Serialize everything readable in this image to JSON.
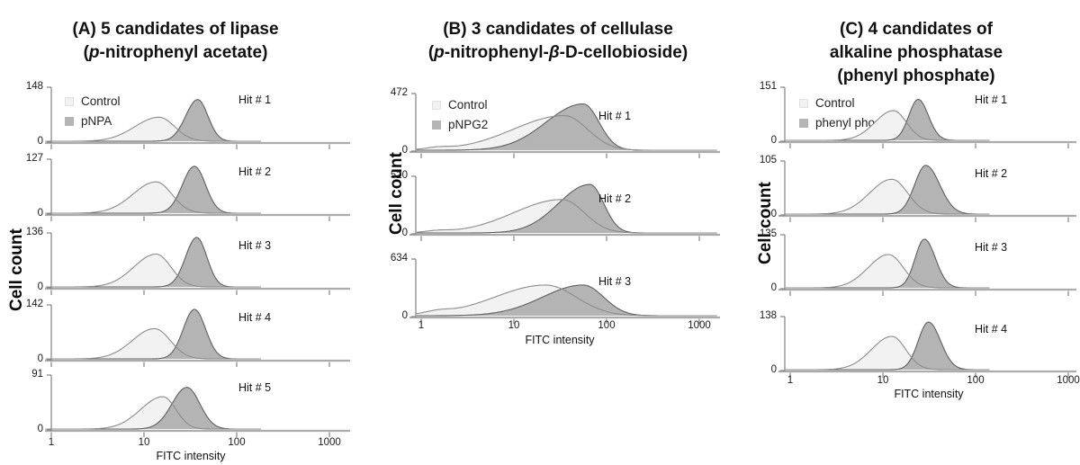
{
  "figure": {
    "ylabel": "Cell count",
    "xlabel": "FITC intensity"
  },
  "colors": {
    "background": "#ffffff",
    "control_fill": "#f2f2f2",
    "control_stroke": "#8c8c8c",
    "substrate_fill": "#b4b4b4",
    "substrate_stroke": "#5f5f5f",
    "axis_line": "#ababab",
    "axis_tick": "#828282",
    "text": "#1a1a1a"
  },
  "chart_data": [
    {
      "panel": "A",
      "type": "area",
      "x_scale": "log",
      "x_range": [
        1,
        1000
      ],
      "title_lines": [
        [
          {
            "t": "(A) 5 candidates of lipase"
          }
        ],
        [
          {
            "t": "("
          },
          {
            "t": "p",
            "italic": true
          },
          {
            "t": "-nitrophenyl acetate)"
          }
        ]
      ],
      "ylabel": "Cell count",
      "xlabel": "FITC intensity",
      "x_ticks": [
        "1",
        "10",
        "100",
        "1000"
      ],
      "legend": [
        {
          "label": "Control",
          "series": "control"
        },
        {
          "label": "pNPA",
          "series": "substrate"
        }
      ],
      "rows": [
        {
          "hit": "Hit # 1",
          "ymax": "148",
          "ymin": "0",
          "control": [
            {
              "peak": 14.5,
              "sl": 0.26,
              "sr": 0.17,
              "h": 0.46
            }
          ],
          "substrate": [
            {
              "peak": 38,
              "sl": 0.13,
              "sr": 0.11,
              "h": 0.8
            }
          ]
        },
        {
          "hit": "Hit # 2",
          "ymax": "127",
          "ymin": "0",
          "control": [
            {
              "peak": 13.5,
              "sl": 0.25,
              "sr": 0.17,
              "h": 0.6
            }
          ],
          "substrate": [
            {
              "peak": 35,
              "sl": 0.13,
              "sr": 0.12,
              "h": 0.9
            }
          ]
        },
        {
          "hit": "Hit # 3",
          "ymax": "136",
          "ymin": "0",
          "control": [
            {
              "peak": 13.5,
              "sl": 0.24,
              "sr": 0.16,
              "h": 0.63
            }
          ],
          "substrate": [
            {
              "peak": 37,
              "sl": 0.12,
              "sr": 0.11,
              "h": 0.95
            }
          ]
        },
        {
          "hit": "Hit # 4",
          "ymax": "142",
          "ymin": "0",
          "control": [
            {
              "peak": 13,
              "sl": 0.24,
              "sr": 0.17,
              "h": 0.58
            }
          ],
          "substrate": [
            {
              "peak": 35,
              "sl": 0.12,
              "sr": 0.12,
              "h": 0.95
            }
          ]
        },
        {
          "hit": "Hit # 5",
          "ymax": "91",
          "ymin": "0",
          "control": [
            {
              "peak": 16,
              "sl": 0.24,
              "sr": 0.14,
              "h": 0.62
            }
          ],
          "substrate": [
            {
              "peak": 29,
              "sl": 0.16,
              "sr": 0.14,
              "h": 0.8
            }
          ]
        }
      ]
    },
    {
      "panel": "B",
      "type": "area",
      "x_scale": "log",
      "x_range": [
        1,
        1000
      ],
      "title_lines": [
        [
          {
            "t": "(B) 3 candidates of cellulase"
          }
        ],
        [
          {
            "t": "("
          },
          {
            "t": "p",
            "italic": true
          },
          {
            "t": "-nitrophenyl-"
          },
          {
            "t": "β",
            "italic": true
          },
          {
            "t": "-D-cellobioside)"
          }
        ]
      ],
      "ylabel": "Cell count",
      "xlabel": "FITC intensity",
      "x_ticks": [
        "1",
        "10",
        "100",
        "1000"
      ],
      "legend": [
        {
          "label": "Control",
          "series": "control"
        },
        {
          "label": "pNPG2",
          "series": "substrate"
        }
      ],
      "rows": [
        {
          "hit": "Hit # 1",
          "ymax": "472",
          "ymin": "0",
          "control": [
            {
              "peak": 35,
              "sl": 0.55,
              "sr": 0.25,
              "h": 0.62
            },
            {
              "peak": 1.5,
              "sl": 0.13,
              "sr": 0.13,
              "h": 0.035
            }
          ],
          "substrate": [
            {
              "peak": 56,
              "sl": 0.4,
              "sr": 0.17,
              "h": 0.83
            }
          ]
        },
        {
          "hit": "Hit # 2",
          "ymax": "520",
          "ymin": "0",
          "control": [
            {
              "peak": 33,
              "sl": 0.52,
              "sr": 0.24,
              "h": 0.6
            },
            {
              "peak": 1.5,
              "sl": 0.13,
              "sr": 0.13,
              "h": 0.03
            }
          ],
          "substrate": [
            {
              "peak": 66,
              "sl": 0.34,
              "sr": 0.15,
              "h": 0.87
            }
          ]
        },
        {
          "hit": "Hit # 3",
          "ymax": "634",
          "ymin": "0",
          "control": [
            {
              "peak": 22,
              "sl": 0.55,
              "sr": 0.33,
              "h": 0.55
            },
            {
              "peak": 1.5,
              "sl": 0.14,
              "sr": 0.14,
              "h": 0.05
            }
          ],
          "substrate": [
            {
              "peak": 56,
              "sl": 0.44,
              "sr": 0.22,
              "h": 0.55
            }
          ]
        }
      ]
    },
    {
      "panel": "C",
      "type": "area",
      "x_scale": "log",
      "x_range": [
        1,
        1000
      ],
      "title_lines": [
        [
          {
            "t": "(C) 4 candidates of"
          }
        ],
        [
          {
            "t": "alkaline phosphatase"
          }
        ],
        [
          {
            "t": "(phenyl phosphate)"
          }
        ]
      ],
      "ylabel": "Cell count",
      "xlabel": "FITC intensity",
      "x_ticks": [
        "1",
        "10",
        "100",
        "1000"
      ],
      "legend": [
        {
          "label": "Control",
          "series": "control"
        },
        {
          "label": "phenyl phosphate",
          "series": "substrate"
        }
      ],
      "rows": [
        {
          "hit": "Hit # 1",
          "ymax": "151",
          "ymin": "0",
          "control": [
            {
              "peak": 13,
              "sl": 0.2,
              "sr": 0.14,
              "h": 0.58
            }
          ],
          "substrate": [
            {
              "peak": 24,
              "sl": 0.1,
              "sr": 0.11,
              "h": 0.8
            }
          ]
        },
        {
          "hit": "Hit # 2",
          "ymax": "105",
          "ymin": "0",
          "control": [
            {
              "peak": 12.5,
              "sl": 0.24,
              "sr": 0.17,
              "h": 0.68
            }
          ],
          "substrate": [
            {
              "peak": 29,
              "sl": 0.12,
              "sr": 0.15,
              "h": 0.95
            }
          ]
        },
        {
          "hit": "Hit # 3",
          "ymax": "135",
          "ymin": "0",
          "control": [
            {
              "peak": 11.5,
              "sl": 0.22,
              "sr": 0.16,
              "h": 0.65
            }
          ],
          "substrate": [
            {
              "peak": 28,
              "sl": 0.1,
              "sr": 0.12,
              "h": 0.95
            }
          ]
        },
        {
          "hit": "Hit # 4",
          "ymax": "138",
          "ymin": "0",
          "control": [
            {
              "peak": 12.5,
              "sl": 0.22,
              "sr": 0.15,
              "h": 0.65
            }
          ],
          "substrate": [
            {
              "peak": 31,
              "sl": 0.11,
              "sr": 0.13,
              "h": 0.93
            }
          ]
        }
      ]
    }
  ]
}
